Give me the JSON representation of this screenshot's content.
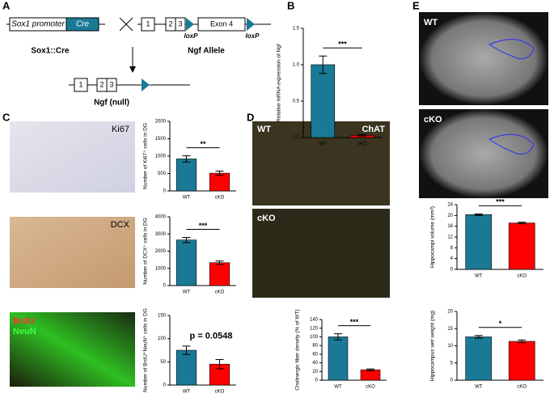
{
  "panels": [
    "A",
    "B",
    "C",
    "D",
    "E"
  ],
  "diagram": {
    "promoter": "Sox1 promoter",
    "cre": "Cre",
    "driver": "Sox1::Cre",
    "exons": [
      "1",
      "2",
      "3"
    ],
    "exon4": "Exon 4",
    "loxp": [
      "loxP",
      "loxP"
    ],
    "allele": "Ngf Allele",
    "null_exons": [
      "1",
      "2",
      "3"
    ],
    "null": "Ngf (null)"
  },
  "images": {
    "ki67": "Ki67",
    "dcx": "DCX",
    "brdu": "BrdU",
    "neun": "NeuN",
    "d_wt": "WT",
    "chat": "ChAT",
    "d_cko": "cKO",
    "e_wt": "WT",
    "e_cko": "cKO"
  },
  "chart_data": [
    {
      "type": "bar",
      "ylabel": "Relative mRNA expression of Ngf",
      "categories": [
        "WT",
        "cKO"
      ],
      "values": [
        1.0,
        0.03
      ],
      "errors": [
        0.12,
        0.01
      ],
      "colors": [
        "#1a7a96",
        "#ff0000"
      ],
      "ylim": [
        0,
        1.5
      ],
      "yticks": [
        {
          "value": 0,
          "label": "0.0"
        },
        {
          "value": 0.5,
          "label": "0.5"
        },
        {
          "value": 1,
          "label": "1.0"
        },
        {
          "value": 1.5,
          "label": "1.5"
        }
      ],
      "annotation": "***"
    },
    {
      "type": "bar",
      "ylabel": "Number of Ki67⁺ cells in DG",
      "categories": [
        "WT",
        "cKO"
      ],
      "values": [
        920,
        510
      ],
      "errors": [
        90,
        60
      ],
      "colors": [
        "#1a7a96",
        "#ff0000"
      ],
      "ylim": [
        0,
        2000
      ],
      "yticks": [
        0,
        500,
        1000,
        1500,
        2000
      ],
      "annotation": "**"
    },
    {
      "type": "bar",
      "ylabel": "Number of DCX⁺ cells in DG",
      "categories": [
        "WT",
        "cKO"
      ],
      "values": [
        2650,
        1330
      ],
      "errors": [
        150,
        100
      ],
      "colors": [
        "#1a7a96",
        "#ff0000"
      ],
      "ylim": [
        0,
        4000
      ],
      "yticks": [
        0,
        1000,
        2000,
        3000,
        4000
      ],
      "annotation": "***"
    },
    {
      "type": "bar",
      "ylabel": "Number of BrdU⁺NeuN⁺ cells in DG",
      "categories": [
        "WT",
        "cKO"
      ],
      "values": [
        75,
        45
      ],
      "errors": [
        9,
        10
      ],
      "colors": [
        "#1a7a96",
        "#ff0000"
      ],
      "ylim": [
        0,
        150
      ],
      "yticks": [
        0,
        50,
        100,
        150
      ],
      "annotation": "p = 0.0548"
    },
    {
      "type": "bar",
      "ylabel": "Cholinergic fiber density (% of WT)",
      "categories": [
        "WT",
        "cKO"
      ],
      "values": [
        100,
        24
      ],
      "errors": [
        7,
        2
      ],
      "colors": [
        "#1a7a96",
        "#ff0000"
      ],
      "ylim": [
        0,
        140
      ],
      "yticks": [
        0,
        20,
        40,
        60,
        80,
        100,
        120,
        140
      ],
      "annotation": "***"
    },
    {
      "type": "bar",
      "ylabel": "Hippocampi volume (mm³)",
      "categories": [
        "WT",
        "cKO"
      ],
      "values": [
        20.3,
        17.2
      ],
      "errors": [
        0.3,
        0.3
      ],
      "colors": [
        "#1a7a96",
        "#ff0000"
      ],
      "ylim": [
        0,
        24
      ],
      "yticks": [
        0,
        4,
        8,
        12,
        16,
        20,
        24
      ],
      "annotation": "***"
    },
    {
      "type": "bar",
      "ylabel": "Hippocampus wet weight (mg)",
      "categories": [
        "WT",
        "cKO"
      ],
      "values": [
        12.6,
        11.3
      ],
      "errors": [
        0.4,
        0.4
      ],
      "colors": [
        "#1a7a96",
        "#ff0000"
      ],
      "ylim": [
        0,
        20
      ],
      "yticks": [
        0,
        5,
        10,
        15,
        20
      ],
      "annotation": "*"
    }
  ]
}
